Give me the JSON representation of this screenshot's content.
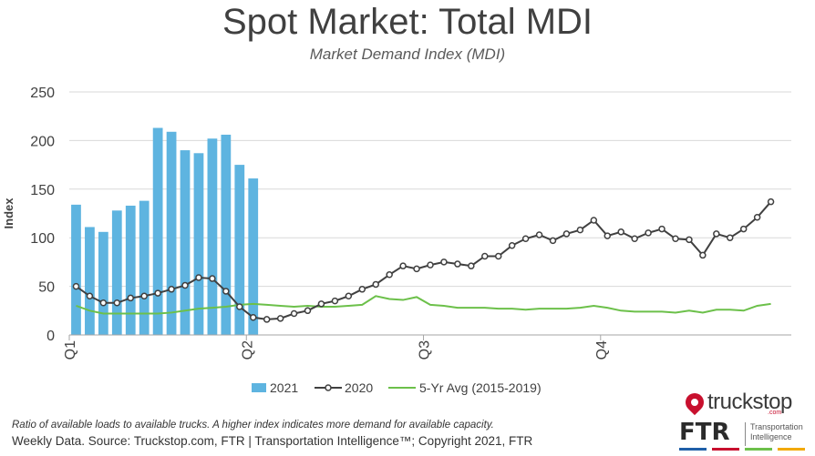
{
  "header": {
    "title": "Spot Market: Total MDI",
    "subtitle": "Market Demand Index (MDI)"
  },
  "footer": {
    "note": "Ratio of available loads to available trucks. A higher index indicates more demand for available capacity.",
    "source": "Weekly Data. Source: Truckstop.com, FTR | Transportation Intelligence™; Copyright 2021, FTR"
  },
  "logos": {
    "truckstop_text": "truckstop",
    "truckstop_com": ".com",
    "ftr_text": "FTR",
    "ftr_sub_line1": "Transportation",
    "ftr_sub_line2": "Intelligence"
  },
  "colors": {
    "bar_2021": "#5eb4e0",
    "line_2020": "#404040",
    "line_avg": "#6cc04a",
    "grid": "#d9d9d9",
    "brand_red": "#c8102e"
  },
  "chart_data": {
    "type": "bar+line",
    "ylabel": "Index",
    "ylim": [
      0,
      250
    ],
    "yticks": [
      0,
      50,
      100,
      150,
      200,
      250
    ],
    "week_count": 53,
    "quarter_labels": [
      "Q1",
      "Q2",
      "Q3",
      "Q4"
    ],
    "quarter_weeks": [
      0,
      13,
      26,
      39
    ],
    "grid": true,
    "legend_position": "bottom",
    "series": [
      {
        "name": "2021",
        "kind": "bar",
        "values": [
          134,
          111,
          106,
          128,
          133,
          138,
          213,
          209,
          190,
          187,
          202,
          206,
          175,
          161
        ]
      },
      {
        "name": "2020",
        "kind": "line-markers",
        "values": [
          50,
          40,
          33,
          33,
          38,
          40,
          43,
          47,
          51,
          59,
          58,
          45,
          29,
          18,
          16,
          17,
          22,
          25,
          32,
          35,
          40,
          47,
          52,
          62,
          71,
          68,
          72,
          75,
          73,
          71,
          81,
          81,
          92,
          99,
          103,
          97,
          104,
          108,
          118,
          102,
          106,
          99,
          105,
          109,
          99,
          98,
          82,
          104,
          100,
          109,
          121,
          137
        ]
      },
      {
        "name": "5-Yr Avg (2015-2019)",
        "kind": "line",
        "values": [
          30,
          25,
          22,
          22,
          22,
          22,
          22,
          23,
          25,
          27,
          28,
          29,
          31,
          32,
          31,
          30,
          29,
          30,
          29,
          29,
          30,
          31,
          40,
          37,
          36,
          39,
          31,
          30,
          28,
          28,
          28,
          27,
          27,
          26,
          27,
          27,
          27,
          28,
          30,
          28,
          25,
          24,
          24,
          24,
          23,
          25,
          23,
          26,
          26,
          25,
          30,
          32
        ]
      }
    ]
  }
}
